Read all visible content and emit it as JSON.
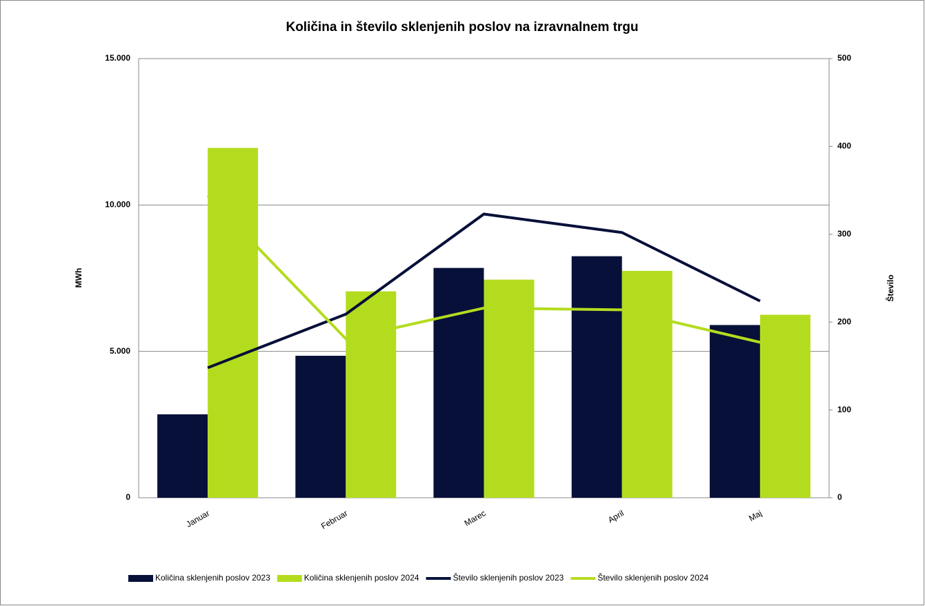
{
  "chart_data": {
    "type": "bar_line",
    "title": "Količina in število sklenjenih poslov na izravnalnem trgu",
    "y_label": "MWh",
    "y2_label": "Število",
    "categories": [
      "Januar",
      "Februar",
      "Marec",
      "April",
      "Maj"
    ],
    "series": [
      {
        "name": "Količina sklenjenih poslov 2023",
        "type": "bar",
        "color": "#061039",
        "values": [
          2850,
          4850,
          7850,
          8250,
          5900
        ]
      },
      {
        "name": "Količina sklenjenih poslov 2024",
        "type": "bar",
        "color": "#b4dc1e",
        "values": [
          11950,
          7050,
          7450,
          7750,
          6250
        ]
      },
      {
        "name": "Število sklenjenih poslov 2023",
        "type": "line",
        "axis": "y2",
        "color": "#061039",
        "values": [
          148,
          209,
          323,
          302,
          224
        ]
      },
      {
        "name": "Število sklenjenih poslov 2024",
        "type": "line",
        "axis": "y2",
        "color": "#b4dc1e",
        "values": [
          344,
          181,
          216,
          214,
          177
        ]
      }
    ],
    "ylim": [
      0,
      15000
    ],
    "yticks": [
      0,
      {
        "value": 5000,
        "label": "5.000"
      },
      {
        "value": 10000,
        "label": "10.000"
      },
      {
        "value": 15000,
        "label": "15.000"
      }
    ],
    "y2lim": [
      0,
      500
    ],
    "y2ticks": [
      0,
      100,
      200,
      300,
      400,
      500
    ],
    "grid": true,
    "legend": "bottom"
  }
}
